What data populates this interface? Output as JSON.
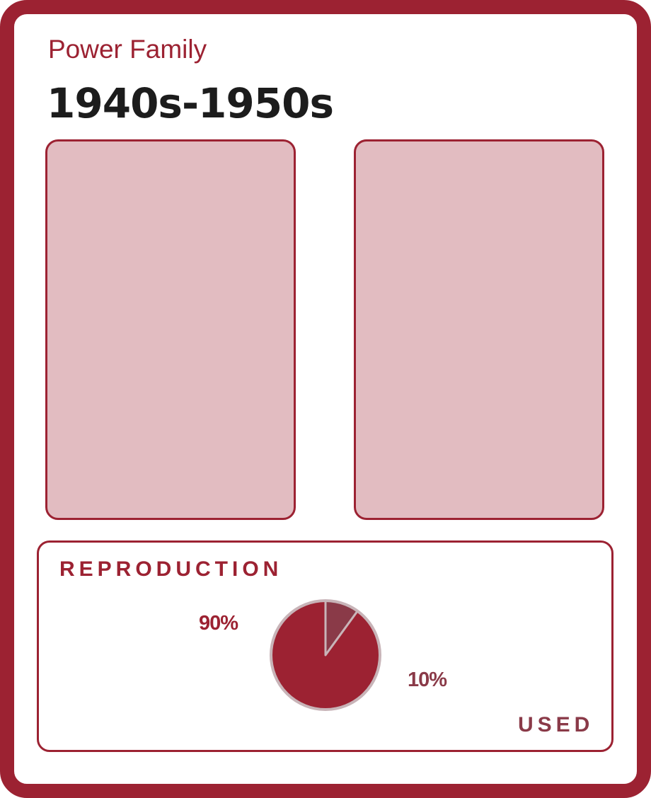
{
  "header": {
    "subtitle": "Power Family",
    "title": "1940s-1950s"
  },
  "colors": {
    "frame": "#9c2232",
    "photo_fill": "#e2bcc1",
    "reproduction_slice": "#9c2232",
    "used_slice": "#8a3a48",
    "pie_outline": "#c8b4b8",
    "title_text": "#1c1c1c"
  },
  "chart_data": {
    "type": "pie",
    "title": "",
    "categories": [
      "REPRODUCTION",
      "USED"
    ],
    "values": [
      90,
      10
    ],
    "value_labels": [
      "90%",
      "10%"
    ],
    "legend": "none"
  }
}
